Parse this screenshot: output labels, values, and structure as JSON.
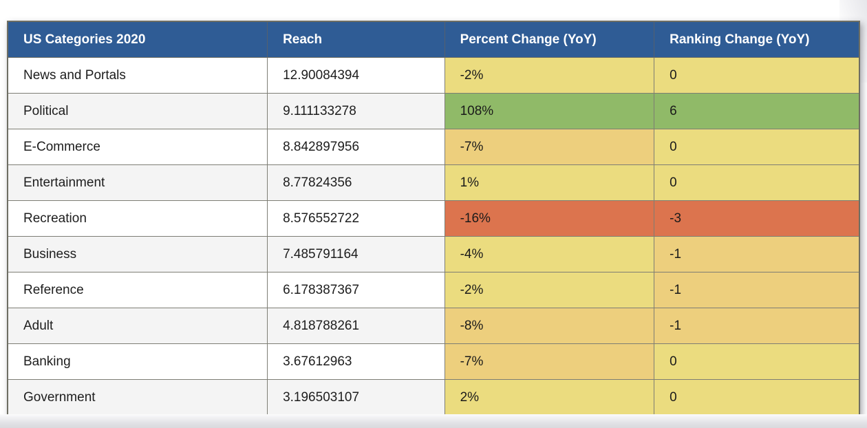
{
  "table": {
    "title": "US Categories 2020",
    "headers": [
      "US Categories 2020",
      "Reach",
      "Percent Change (YoY)",
      "Ranking Change (YoY)"
    ],
    "rows": [
      {
        "category": "News and Portals",
        "reach": "12.90084394",
        "percent_change": "-2%",
        "percent_color": "#EBDC7F",
        "ranking_change": "0",
        "ranking_color": "#EBDC7F"
      },
      {
        "category": "Political",
        "reach": "9.111133278",
        "percent_change": "108%",
        "percent_color": "#90BA68",
        "ranking_change": "6",
        "ranking_color": "#90BA68"
      },
      {
        "category": "E-Commerce",
        "reach": "8.842897956",
        "percent_change": "-7%",
        "percent_color": "#EDCF7D",
        "ranking_change": "0",
        "ranking_color": "#EBDC7F"
      },
      {
        "category": "Entertainment",
        "reach": "8.77824356",
        "percent_change": "1%",
        "percent_color": "#EBDC7F",
        "ranking_change": "0",
        "ranking_color": "#EBDC7F"
      },
      {
        "category": "Recreation",
        "reach": "8.576552722",
        "percent_change": "-16%",
        "percent_color": "#DC744E",
        "ranking_change": "-3",
        "ranking_color": "#DC744E"
      },
      {
        "category": "Business",
        "reach": "7.485791164",
        "percent_change": "-4%",
        "percent_color": "#EBDC7F",
        "ranking_change": "-1",
        "ranking_color": "#EDCF7D"
      },
      {
        "category": "Reference",
        "reach": "6.178387367",
        "percent_change": "-2%",
        "percent_color": "#EBDC7F",
        "ranking_change": "-1",
        "ranking_color": "#EDCF7D"
      },
      {
        "category": "Adult",
        "reach": "4.818788261",
        "percent_change": "-8%",
        "percent_color": "#EDCF7D",
        "ranking_change": "-1",
        "ranking_color": "#EDCF7D"
      },
      {
        "category": "Banking",
        "reach": "3.67612963",
        "percent_change": "-7%",
        "percent_color": "#EDCF7D",
        "ranking_change": "0",
        "ranking_color": "#EBDC7F"
      },
      {
        "category": "Government",
        "reach": "3.196503107",
        "percent_change": "2%",
        "percent_color": "#EBDC7F",
        "ranking_change": "0",
        "ranking_color": "#EBDC7F"
      }
    ],
    "colors": {
      "header_bg": "#2F5C95",
      "header_text": "#FFFFFF",
      "positive_high": "#90BA68",
      "neutral": "#EBDC7F",
      "negative_mild": "#EDCF7D",
      "negative_strong": "#DC744E",
      "row_alt_bg": "#F4F4F4",
      "row_bg": "#FFFFFF"
    }
  }
}
